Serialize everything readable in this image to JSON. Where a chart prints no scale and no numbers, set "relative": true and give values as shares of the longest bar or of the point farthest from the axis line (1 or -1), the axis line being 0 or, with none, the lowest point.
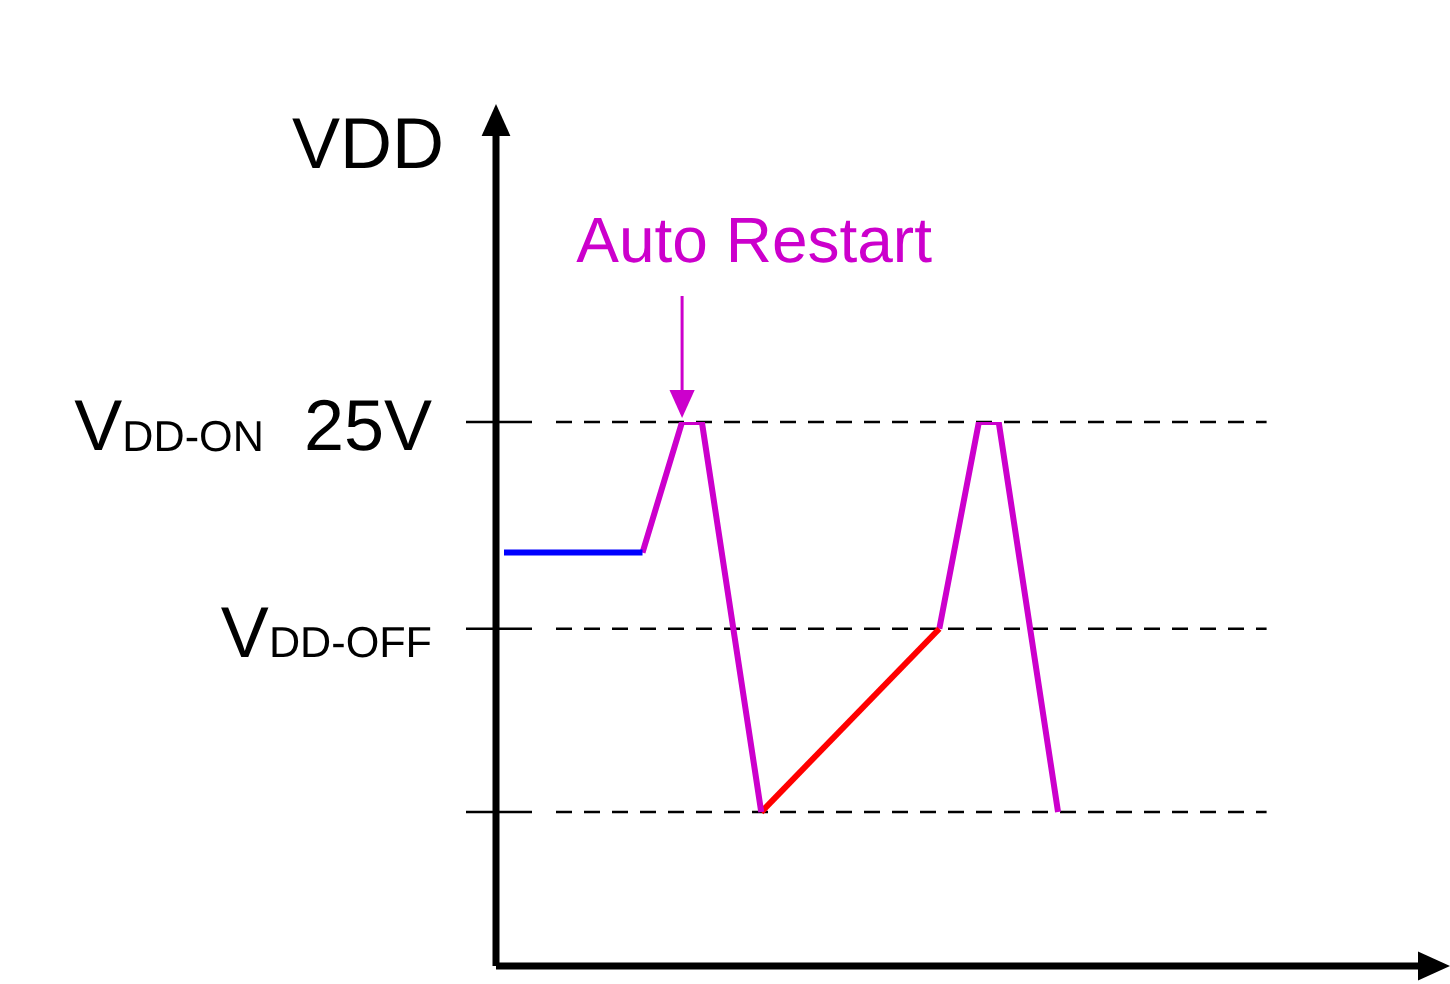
{
  "chart_data": {
    "type": "line",
    "relative": true,
    "ylabel": "VDD",
    "line_style": "solid",
    "marker": "none",
    "grid": false,
    "legend": false,
    "categories": [
      null,
      null,
      null,
      null,
      null,
      null,
      null,
      null,
      null,
      null,
      null,
      null,
      null,
      null,
      null,
      null,
      null,
      null,
      null,
      null,
      null,
      null,
      null,
      null,
      null,
      null,
      null,
      null,
      null,
      null,
      null,
      null,
      null,
      null,
      null,
      null,
      null,
      null,
      null,
      null,
      null,
      null,
      null,
      null,
      null,
      null,
      null,
      null
    ],
    "series": [
      {
        "color": "#0000ff",
        "values": [
          0.76,
          null,
          null,
          null,
          null,
          null,
          null,
          0.76,
          null,
          null,
          null,
          null,
          null,
          null,
          null,
          null,
          null,
          null,
          null,
          null,
          null,
          null,
          null,
          null,
          null,
          null,
          null,
          null,
          null,
          null,
          null,
          null,
          null,
          null,
          null,
          null,
          null,
          null,
          null,
          null,
          null,
          null,
          null,
          null,
          null,
          null,
          null,
          null
        ]
      },
      {
        "color": "#cc00cc",
        "values": [
          null,
          null,
          null,
          null,
          null,
          null,
          null,
          0.76,
          null,
          1,
          1,
          null,
          null,
          0.283,
          null,
          null,
          null,
          null,
          null,
          null,
          null,
          null,
          null,
          null,
          null,
          null,
          null,
          null,
          null,
          null,
          null,
          null,
          null,
          null,
          null,
          null,
          null,
          null,
          null,
          null,
          null,
          null,
          null,
          null,
          null,
          null,
          null,
          null
        ]
      },
      {
        "color": "#ff0000",
        "values": [
          null,
          null,
          null,
          null,
          null,
          null,
          null,
          null,
          null,
          null,
          null,
          null,
          null,
          0.283,
          null,
          null,
          null,
          null,
          null,
          null,
          null,
          null,
          0.62,
          null,
          null,
          null,
          null,
          null,
          null,
          null,
          null,
          null,
          null,
          null,
          null,
          null,
          null,
          null,
          null,
          null,
          null,
          null,
          null,
          null,
          null,
          null,
          null,
          null
        ]
      },
      {
        "color": "#cc00cc",
        "values": [
          null,
          null,
          null,
          null,
          null,
          null,
          null,
          null,
          null,
          null,
          null,
          null,
          null,
          null,
          null,
          null,
          null,
          null,
          null,
          null,
          null,
          null,
          0.62,
          null,
          1,
          1,
          null,
          null,
          0.283,
          null,
          null,
          null,
          null,
          null,
          null,
          null,
          null,
          null,
          null,
          null,
          null,
          null,
          null,
          null,
          null,
          null,
          null,
          null
        ]
      }
    ],
    "ref_lines": [
      {
        "axis": "y",
        "value": 1,
        "label": "V$_{DD-ON}$  25V",
        "color": "#000000",
        "line_style": "dashed"
      },
      {
        "axis": "y",
        "value": 0.62,
        "label": "V$_{DD-OFF}$",
        "color": "#000000",
        "line_style": "dashed"
      },
      {
        "axis": "y",
        "value": 0.283,
        "label": null,
        "color": "#000000",
        "line_style": "dashed"
      }
    ],
    "annotations": [
      {
        "text": "Auto Restart",
        "y": 1
      }
    ]
  }
}
